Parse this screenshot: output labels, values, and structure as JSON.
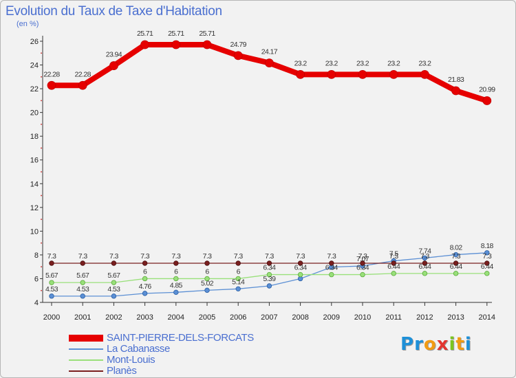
{
  "title": "Evolution du Taux de Taxe d'Habitation",
  "subtitle": "(en %)",
  "logo": {
    "letters": [
      "P",
      "r",
      "o",
      "x",
      "i",
      "t",
      "i"
    ],
    "colors": [
      "#1e90d8",
      "#1e90d8",
      "#f29b12",
      "#e3342f",
      "#7cc520",
      "#f29b12",
      "#1e90d8"
    ]
  },
  "chart_data": {
    "type": "line",
    "title": "Evolution du Taux de Taxe d'Habitation",
    "ylabel": "(en %)",
    "xlabel": "",
    "x": [
      "2000",
      "2001",
      "2002",
      "2003",
      "2004",
      "2005",
      "2006",
      "2007",
      "2008",
      "2009",
      "2010",
      "2011",
      "2012",
      "2013",
      "2014"
    ],
    "ylim": [
      4,
      26
    ],
    "yticks": [
      "4",
      "6",
      "8",
      "10",
      "12",
      "14",
      "16",
      "18",
      "20",
      "22",
      "24",
      "26"
    ],
    "grid": false,
    "legend_position": "bottom-left",
    "series": [
      {
        "name": "SAINT-PIERRE-DELS-FORCATS",
        "color": "#e60000",
        "values": [
          22.28,
          22.28,
          23.94,
          25.71,
          25.71,
          25.71,
          24.79,
          24.17,
          23.2,
          23.2,
          23.2,
          23.2,
          23.2,
          21.83,
          20.99
        ],
        "labels": [
          "22.28",
          "22.28",
          "23.94",
          "25.71",
          "25.71",
          "25.71",
          "24.79",
          "24.17",
          "23.2",
          "23.2",
          "23.2",
          "23.2",
          "23.2",
          "21.83",
          "20.99"
        ]
      },
      {
        "name": "La Cabanasse",
        "color": "#5b8fd4",
        "values": [
          4.53,
          4.53,
          4.53,
          4.76,
          4.85,
          5.02,
          5.14,
          5.39,
          6.0,
          6.97,
          7.07,
          7.5,
          7.74,
          8.02,
          8.18
        ],
        "labels": [
          "4.53",
          "4.53",
          "4.53",
          "4.76",
          "4.85",
          "5.02",
          "5.14",
          "5.39",
          "",
          "",
          "7.07",
          "7.5",
          "7.74",
          "8.02",
          "8.18"
        ]
      },
      {
        "name": "Mont-Louis",
        "color": "#99e07a",
        "values": [
          5.67,
          5.67,
          5.67,
          6.0,
          6.0,
          6.0,
          6.0,
          6.34,
          6.34,
          6.34,
          6.34,
          6.44,
          6.44,
          6.44,
          6.44
        ],
        "labels": [
          "5.67",
          "5.67",
          "5.67",
          "6",
          "6",
          "6",
          "6",
          "6.34",
          "6.34",
          "6.34",
          "6.34",
          "6.44",
          "6.44",
          "6.44",
          "6.44"
        ]
      },
      {
        "name": "Planès",
        "color": "#7a1f1f",
        "values": [
          7.3,
          7.3,
          7.3,
          7.3,
          7.3,
          7.3,
          7.3,
          7.3,
          7.3,
          7.3,
          7.3,
          7.3,
          7.3,
          7.3,
          7.3
        ],
        "labels": [
          "7.3",
          "7.3",
          "7.3",
          "7.3",
          "7.3",
          "7.3",
          "7.3",
          "7.3",
          "7.3",
          "7.3",
          "7.3",
          "7.3",
          "7.3",
          "7.3",
          "7.3"
        ]
      }
    ]
  }
}
